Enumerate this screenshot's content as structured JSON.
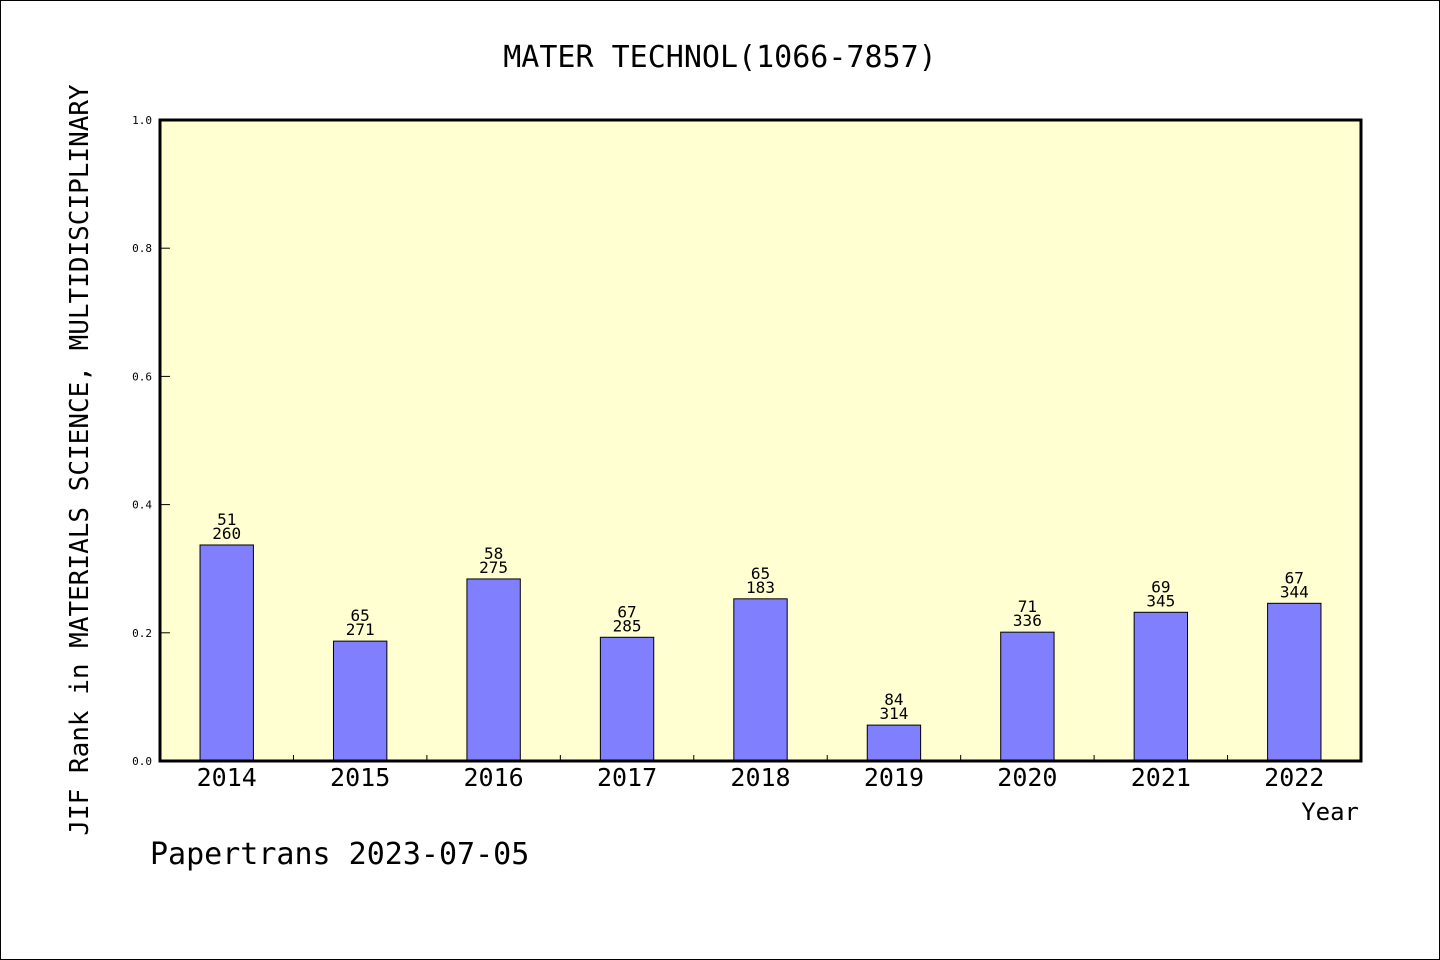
{
  "chart_data": {
    "type": "bar",
    "title": "MATER TECHNOL(1066-7857)",
    "xlabel": "Year",
    "ylabel": "JIF Rank in MATERIALS SCIENCE, MULTIDISCIPLINARY",
    "categories": [
      "2014",
      "2015",
      "2016",
      "2017",
      "2018",
      "2019",
      "2020",
      "2021",
      "2022"
    ],
    "values": [
      0.337,
      0.187,
      0.284,
      0.193,
      0.253,
      0.056,
      0.201,
      0.232,
      0.246
    ],
    "rank": [
      "51",
      "65",
      "58",
      "67",
      "65",
      "84",
      "71",
      "69",
      "67"
    ],
    "total": [
      "260",
      "271",
      "275",
      "285",
      "183",
      "314",
      "336",
      "345",
      "344"
    ],
    "ylim": [
      0,
      1.0
    ],
    "yticks": [
      "0.0",
      "0.2",
      "0.4",
      "0.6",
      "0.8",
      "1.0"
    ],
    "grid": false,
    "colors": {
      "plot_background": "#ffffd2",
      "bar_fill": "#8080ff",
      "bar_edge": "#000000"
    }
  },
  "footer": {
    "text": "Papertrans 2023-07-05"
  }
}
